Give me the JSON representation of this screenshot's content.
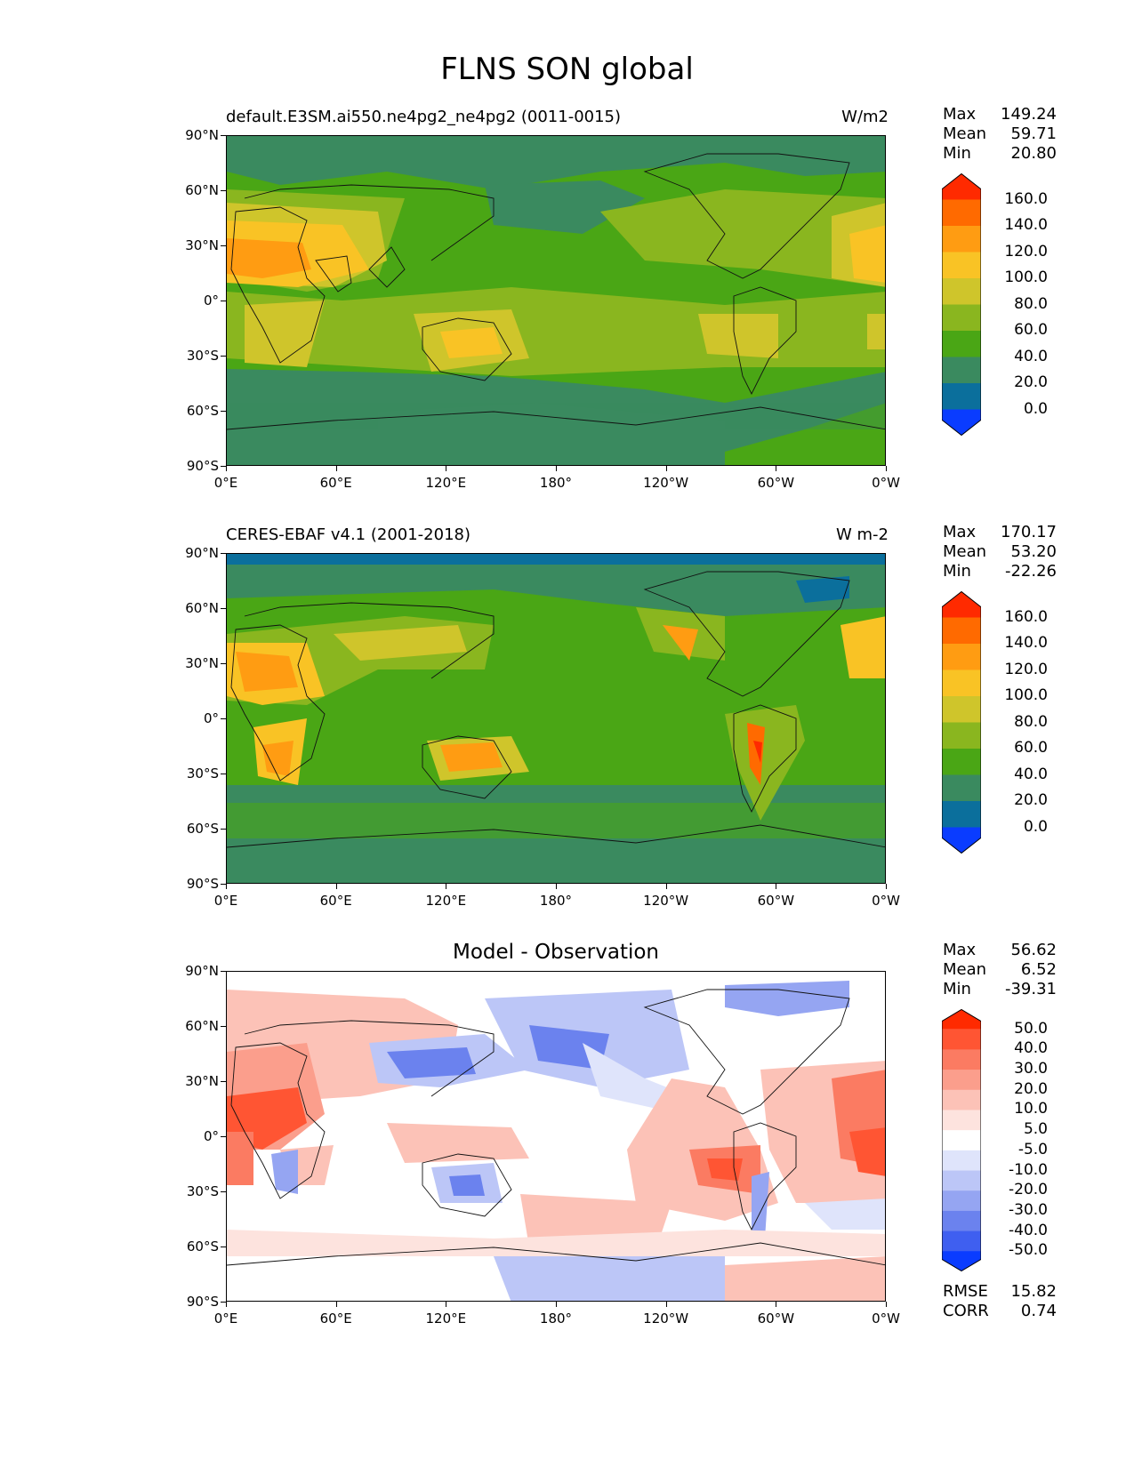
{
  "figure_title": "FLNS SON global",
  "panels": [
    {
      "title_left": "default.E3SM.ai550.ne4pg2_ne4pg2 (0011-0015)",
      "title_right": "W/m2",
      "stats": [
        {
          "label": "Max",
          "value": "149.24"
        },
        {
          "label": "Mean",
          "value": "59.71"
        },
        {
          "label": "Min",
          "value": "20.80"
        }
      ],
      "colorbar_labels": [
        "160.0",
        "140.0",
        "120.0",
        "100.0",
        "80.0",
        "60.0",
        "40.0",
        "20.0",
        "0.0"
      ],
      "colorbar_colors": [
        "#ff2a00",
        "#ff6a00",
        "#ff9c12",
        "#f9c325",
        "#cfc52b",
        "#8ab61f",
        "#4aa615",
        "#3a8a5f",
        "#0b6f9c",
        "#0a3cff"
      ],
      "base_color": "#4aa615"
    },
    {
      "title_left": "CERES-EBAF v4.1 (2001-2018)",
      "title_right": "W m-2",
      "stats": [
        {
          "label": "Max",
          "value": "170.17"
        },
        {
          "label": "Mean",
          "value": "53.20"
        },
        {
          "label": "Min",
          "value": "-22.26"
        }
      ],
      "colorbar_labels": [
        "160.0",
        "140.0",
        "120.0",
        "100.0",
        "80.0",
        "60.0",
        "40.0",
        "20.0",
        "0.0"
      ],
      "colorbar_colors": [
        "#ff2a00",
        "#ff6a00",
        "#ff9c12",
        "#f9c325",
        "#cfc52b",
        "#8ab61f",
        "#4aa615",
        "#3a8a5f",
        "#0b6f9c",
        "#0a3cff"
      ],
      "base_color": "#4aa615"
    },
    {
      "title_center": "Model - Observation",
      "stats": [
        {
          "label": "Max",
          "value": "56.62"
        },
        {
          "label": "Mean",
          "value": "6.52"
        },
        {
          "label": "Min",
          "value": "-39.31"
        }
      ],
      "colorbar_labels": [
        "50.0",
        "40.0",
        "30.0",
        "20.0",
        "10.0",
        "5.0",
        "-5.0",
        "-10.0",
        "-20.0",
        "-30.0",
        "-40.0",
        "-50.0"
      ],
      "colorbar_colors": [
        "#ff2a00",
        "#ff5533",
        "#fb7b62",
        "#fb9e8c",
        "#fcc2b7",
        "#fde3de",
        "#ffffff",
        "#dfe4fb",
        "#bcc6f7",
        "#95a5f2",
        "#6b82ee",
        "#3f5ff0",
        "#0a3cff"
      ],
      "base_color": "#ffffff",
      "metrics": [
        {
          "label": "RMSE",
          "value": "15.82"
        },
        {
          "label": "CORR",
          "value": "0.74"
        }
      ]
    }
  ],
  "lat_ticks": [
    "90°N",
    "60°N",
    "30°N",
    "0°",
    "30°S",
    "60°S",
    "90°S"
  ],
  "lon_ticks": [
    "0°E",
    "60°E",
    "120°E",
    "180°",
    "120°W",
    "60°W",
    "0°W"
  ]
}
